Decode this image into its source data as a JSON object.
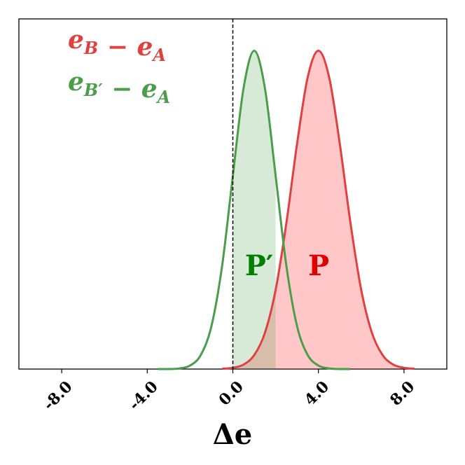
{
  "chart_data": {
    "type": "area",
    "series": [
      {
        "name": "eB − eA",
        "color": "#e04040",
        "fill": "#ff0000",
        "x": [
          -0.5,
          0,
          0.5,
          1,
          1.5,
          2,
          2.5,
          3,
          3.5,
          4,
          4.5,
          5,
          5.5,
          6,
          6.5,
          7,
          7.5,
          8,
          8.5
        ],
        "values": [
          0.001,
          0.004,
          0.014,
          0.044,
          0.114,
          0.249,
          0.458,
          0.707,
          0.917,
          1,
          0.917,
          0.707,
          0.458,
          0.249,
          0.114,
          0.044,
          0.014,
          0.004,
          0.001
        ],
        "shade": [
          0,
          8.5
        ]
      },
      {
        "name": "eB′ − eA",
        "color": "#4a9e4a",
        "fill": "#4a9e4a",
        "x": [
          -3.5,
          -3,
          -2.5,
          -2,
          -1.5,
          -1,
          -0.5,
          0,
          0.5,
          1,
          1.5,
          2,
          2.5,
          3,
          3.5,
          4,
          4.5,
          5,
          5.5
        ],
        "values": [
          0,
          0,
          0.002,
          0.011,
          0.044,
          0.135,
          0.325,
          0.607,
          0.882,
          1,
          0.882,
          0.607,
          0.325,
          0.135,
          0.044,
          0.011,
          0.002,
          0,
          0
        ],
        "shade": [
          0,
          2
        ]
      }
    ],
    "annotations": [
      {
        "text": "P′",
        "color": "#008000"
      },
      {
        "text": "P",
        "color": "#e00000"
      }
    ],
    "xlabel": "Δe",
    "xlim": [
      -10,
      10
    ],
    "xticks": [
      {
        "value": -8,
        "label": "-8.0"
      },
      {
        "value": -4,
        "label": "-4.0"
      },
      {
        "value": 0,
        "label": "0.0"
      },
      {
        "value": 4,
        "label": "4.0"
      },
      {
        "value": 8,
        "label": "8.0"
      }
    ],
    "ylim": [
      0,
      1.1
    ],
    "vline": 0
  }
}
